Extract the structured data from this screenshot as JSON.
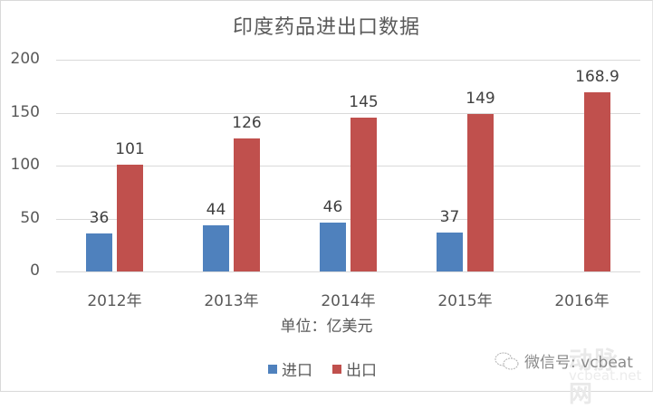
{
  "chart_data": {
    "type": "bar",
    "title": "印度药品进出口数据",
    "xlabel": "单位：亿美元",
    "ylabel": "",
    "categories": [
      "2012年",
      "2013年",
      "2014年",
      "2015年",
      "2016年"
    ],
    "series": [
      {
        "name": "进口",
        "color": "#4f81bd",
        "values": [
          36,
          44,
          46,
          37,
          null
        ],
        "labels": [
          "36",
          "44",
          "46",
          "37",
          ""
        ]
      },
      {
        "name": "出口",
        "color": "#c0504d",
        "values": [
          101,
          126,
          145,
          149,
          168.9
        ],
        "labels": [
          "101",
          "126",
          "145",
          "149",
          "168.9"
        ]
      }
    ],
    "ylim": [
      0,
      200
    ],
    "yticks": [
      "0",
      "50",
      "100",
      "150",
      "200"
    ],
    "grid": true,
    "legend_position": "bottom"
  },
  "watermark": {
    "text": "微信号: vcbeat",
    "brand": "动脉网",
    "brand_sub": "vcbeat.net"
  }
}
